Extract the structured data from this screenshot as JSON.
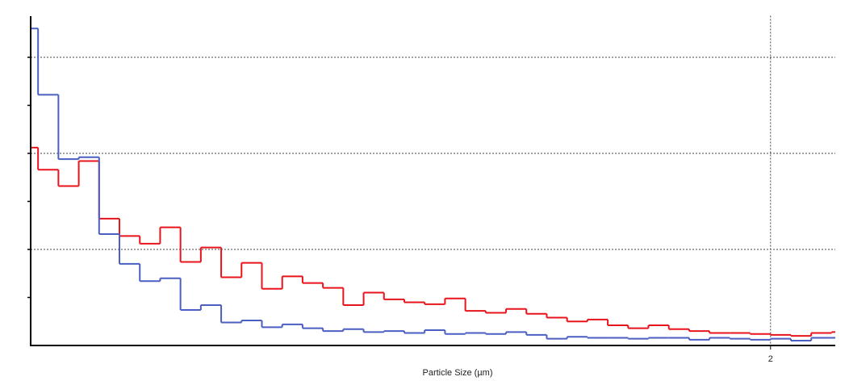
{
  "chart_data": {
    "type": "step-histogram",
    "x_label": "Particle Size (µm)",
    "bins": [
      0,
      0.02,
      0.075,
      0.13,
      0.185,
      0.24,
      0.295,
      0.35,
      0.405,
      0.46,
      0.515,
      0.57,
      0.625,
      0.68,
      0.735,
      0.79,
      0.845,
      0.9,
      0.955,
      1.01,
      1.065,
      1.12,
      1.175,
      1.23,
      1.285,
      1.34,
      1.395,
      1.45,
      1.505,
      1.56,
      1.615,
      1.67,
      1.725,
      1.78,
      1.835,
      1.89,
      1.945,
      2.0,
      2.055,
      2.11,
      2.165,
      2.175
    ],
    "series": [
      {
        "color": "#e8141b",
        "values": [
          2.06,
          1.83,
          1.66,
          1.92,
          1.32,
          1.14,
          1.06,
          1.23,
          0.87,
          1.02,
          0.71,
          0.86,
          0.59,
          0.72,
          0.65,
          0.6,
          0.42,
          0.55,
          0.48,
          0.45,
          0.43,
          0.49,
          0.36,
          0.34,
          0.38,
          0.33,
          0.29,
          0.25,
          0.27,
          0.21,
          0.18,
          0.21,
          0.17,
          0.15,
          0.13,
          0.13,
          0.12,
          0.11,
          0.1,
          0.13,
          0.14
        ]
      },
      {
        "color": "#4a5fc1",
        "values": [
          3.3,
          2.61,
          1.94,
          1.96,
          1.16,
          0.85,
          0.67,
          0.7,
          0.37,
          0.42,
          0.24,
          0.26,
          0.19,
          0.22,
          0.18,
          0.15,
          0.17,
          0.14,
          0.15,
          0.13,
          0.16,
          0.12,
          0.13,
          0.12,
          0.14,
          0.11,
          0.07,
          0.09,
          0.08,
          0.08,
          0.07,
          0.08,
          0.08,
          0.06,
          0.08,
          0.07,
          0.06,
          0.07,
          0.05,
          0.08,
          0.08
        ]
      }
    ],
    "xlim": [
      0,
      2.175
    ],
    "xticks": [
      2
    ],
    "ylim": [
      0,
      3.5
    ],
    "yticks": [
      0.5,
      1,
      1.5,
      2,
      2.5,
      3
    ],
    "grid": true
  }
}
